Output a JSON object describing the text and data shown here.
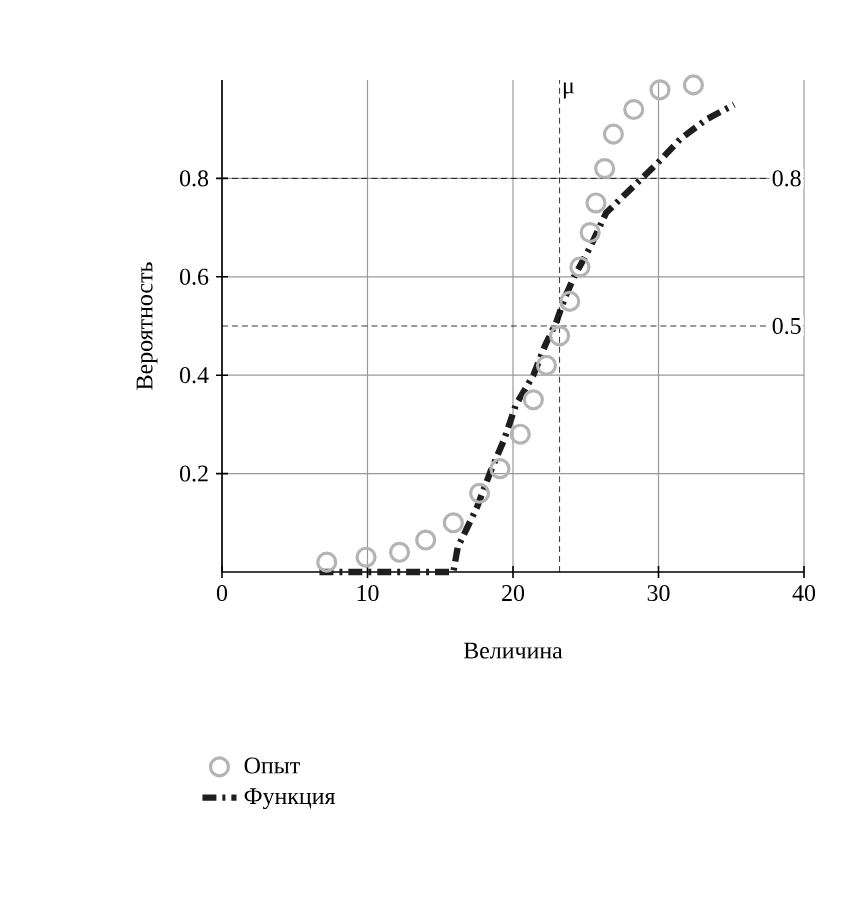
{
  "chart_data": {
    "type": "scatter",
    "xlabel": "Величина",
    "ylabel": "Вероятность",
    "xlim": [
      0,
      40
    ],
    "ylim": [
      0,
      1
    ],
    "xticks": [
      0,
      10,
      20,
      30,
      40
    ],
    "yticks": [
      0.2,
      0.4,
      0.6,
      0.8
    ],
    "grid": true,
    "legend": "bottom",
    "series": [
      {
        "name": "Опыт",
        "marker": "circle",
        "color": "#b4b4b4",
        "x": [
          7.2,
          9.9,
          12.2,
          14,
          15.9,
          17.7,
          19.1,
          20.5,
          21.4,
          22.3,
          23.2,
          23.9,
          24.6,
          25.3,
          25.7,
          26.3,
          26.9,
          28.3,
          30.1,
          32.4
        ],
        "values": [
          0.02,
          0.03,
          0.04,
          0.065,
          0.1,
          0.16,
          0.21,
          0.28,
          0.35,
          0.42,
          0.48,
          0.55,
          0.62,
          0.69,
          0.75,
          0.82,
          0.89,
          0.94,
          0.98,
          0.99
        ]
      },
      {
        "name": "Функция",
        "type": "line",
        "line_style": "dashed",
        "color": "#1e1e1e",
        "x": [
          6.7,
          9.5,
          11.1,
          13.3,
          15.9,
          16.2,
          17.5,
          18.4,
          19.4,
          20.2,
          21.4,
          22.2,
          23,
          23.6,
          24.2,
          25.3,
          26.4,
          27.8,
          28.5,
          29.9,
          31.5,
          33.3,
          35.2
        ],
        "values": [
          0,
          0,
          0,
          0,
          0,
          0.05,
          0.13,
          0.2,
          0.27,
          0.34,
          0.4,
          0.46,
          0.51,
          0.56,
          0.6,
          0.66,
          0.73,
          0.77,
          0.79,
          0.83,
          0.88,
          0.92,
          0.95
        ]
      }
    ],
    "ref_lines": [
      {
        "axis": "x",
        "value": 23.2,
        "label": "μ",
        "line_style": "dashed"
      },
      {
        "axis": "y",
        "value": 0.8,
        "label": "0.8",
        "line_style": "dashed"
      },
      {
        "axis": "y",
        "value": 0.5,
        "label": "0.5",
        "line_style": "dashed"
      }
    ]
  }
}
